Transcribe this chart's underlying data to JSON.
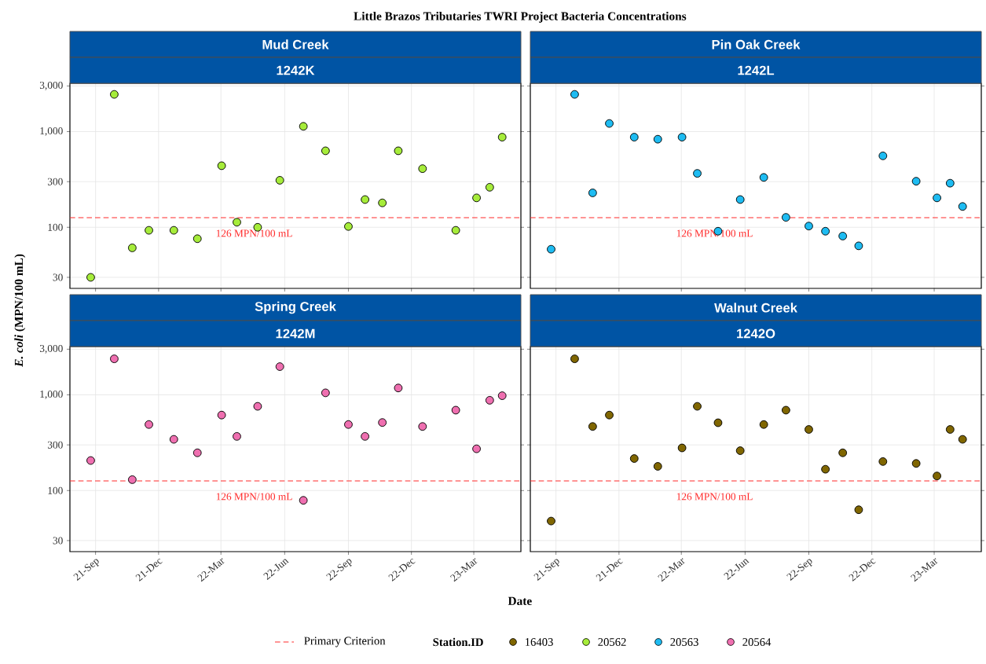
{
  "chart_data": [
    {
      "type": "scatter",
      "title": "Mud Creek",
      "subtitle": "1242K",
      "ylabel": "*E. coli* (MPN/100 mL)",
      "annotations": [
        "Little Brazos Tributaries TWRI Project Bacteria Concentrations"
      ],
      "x": [
        "2021-08-25",
        "2021-09-28",
        "2021-10-24",
        "2021-11-17",
        "2021-12-23",
        "2022-01-26",
        "2022-03-02",
        "2022-03-24",
        "2022-04-23",
        "2022-05-25",
        "2022-06-28",
        "2022-07-30",
        "2022-09-01",
        "2022-09-25",
        "2022-10-20",
        "2022-11-12",
        "2022-12-17",
        "2023-02-03",
        "2023-03-05",
        "2023-03-24",
        "2023-04-11"
      ],
      "series": [
        {
          "name": "20562",
          "color": "#a6ec3a",
          "values": [
            30,
            2450,
            61,
            93,
            93,
            76,
            440,
            113,
            100,
            310,
            1135,
            630,
            102,
            195,
            180,
            630,
            410,
            93,
            203,
            262,
            875
          ]
        }
      ],
      "xlim": [
        "2021-07-26",
        "2023-05-08"
      ],
      "xticks": [
        {
          "value": "2021-09-01",
          "label": null
        },
        {
          "value": "2021-12-01",
          "label": null
        },
        {
          "value": "2022-03-01",
          "label": null
        },
        {
          "value": "2022-06-01",
          "label": null
        },
        {
          "value": "2022-09-01",
          "label": null
        },
        {
          "value": "2022-12-01",
          "label": null
        },
        {
          "value": "2023-03-01",
          "label": null
        }
      ],
      "ylim": [
        23,
        3200
      ],
      "yticks": [
        30,
        100,
        300,
        {
          "value": 1000,
          "label": "1,000"
        },
        {
          "value": 3000,
          "label": "3,000"
        }
      ],
      "log": "y",
      "grid": true,
      "marker": "circle",
      "legend": "bottom",
      "tick_labels": "y",
      "ref_lines": [
        {
          "axis": "y",
          "value": 126,
          "label": "126 MPN/100 mL",
          "color": "#ff2a2a",
          "line_style": "dashed"
        }
      ]
    },
    {
      "type": "scatter",
      "title": "Pin Oak Creek",
      "subtitle": "1242L",
      "x": [
        "2021-08-25",
        "2021-09-28",
        "2021-10-24",
        "2021-11-17",
        "2021-12-23",
        "2022-01-26",
        "2022-03-02",
        "2022-03-24",
        "2022-04-23",
        "2022-05-25",
        "2022-06-28",
        "2022-07-30",
        "2022-09-01",
        "2022-09-25",
        "2022-10-20",
        "2022-11-12",
        "2022-12-17",
        "2023-02-03",
        "2023-03-05",
        "2023-03-24",
        "2023-04-11"
      ],
      "series": [
        {
          "name": "20563",
          "color": "#1ebcf2",
          "values": [
            59,
            2450,
            229,
            1217,
            875,
            833,
            875,
            366,
            91,
            195,
            332,
            127,
            103,
            91,
            81,
            64,
            558,
            303,
            203,
            289,
            165
          ]
        }
      ],
      "xlim": [
        "2021-07-26",
        "2023-05-08"
      ],
      "xticks": [
        {
          "value": "2021-09-01",
          "label": null
        },
        {
          "value": "2021-12-01",
          "label": null
        },
        {
          "value": "2022-03-01",
          "label": null
        },
        {
          "value": "2022-06-01",
          "label": null
        },
        {
          "value": "2022-09-01",
          "label": null
        },
        {
          "value": "2022-12-01",
          "label": null
        },
        {
          "value": "2023-03-01",
          "label": null
        }
      ],
      "ylim": [
        23,
        3200
      ],
      "yticks": [
        {
          "value": 30,
          "label": null
        },
        {
          "value": 100,
          "label": null
        },
        {
          "value": 300,
          "label": null
        },
        {
          "value": 1000,
          "label": null
        },
        {
          "value": 3000,
          "label": null
        }
      ],
      "log": "y",
      "grid": true,
      "marker": "circle",
      "legend": "bottom",
      "tick_labels": false,
      "ref_lines": [
        {
          "axis": "y",
          "value": 126,
          "label": "126 MPN/100 mL",
          "color": "#ff2a2a",
          "line_style": "dashed"
        }
      ]
    },
    {
      "type": "scatter",
      "title": "Spring Creek",
      "subtitle": "1242M",
      "xlabel": "Date",
      "x": [
        "2021-08-25",
        "2021-09-28",
        "2021-10-24",
        "2021-11-17",
        "2021-12-23",
        "2022-01-26",
        "2022-03-02",
        "2022-03-24",
        "2022-04-23",
        "2022-05-25",
        "2022-06-28",
        "2022-07-30",
        "2022-09-01",
        "2022-09-25",
        "2022-10-20",
        "2022-11-12",
        "2022-12-17",
        "2023-02-03",
        "2023-03-05",
        "2023-03-24",
        "2023-04-11"
      ],
      "series": [
        {
          "name": "20564",
          "color": "#ef6fb0",
          "values": [
            206,
            2380,
            130,
            490,
            343,
            248,
            615,
            368,
            759,
            1973,
            79,
            1050,
            490,
            368,
            514,
            1180,
            467,
            692,
            273,
            878,
            980
          ]
        }
      ],
      "xlim": [
        "2021-07-26",
        "2023-05-08"
      ],
      "xticks": [
        {
          "value": "2021-09-01",
          "label": "21-Sep"
        },
        {
          "value": "2021-12-01",
          "label": "21-Dec"
        },
        {
          "value": "2022-03-01",
          "label": "22-Mar"
        },
        {
          "value": "2022-06-01",
          "label": "22-Jun"
        },
        {
          "value": "2022-09-01",
          "label": "22-Sep"
        },
        {
          "value": "2022-12-01",
          "label": "22-Dec"
        },
        {
          "value": "2023-03-01",
          "label": "23-Mar"
        }
      ],
      "ylim": [
        23,
        3200
      ],
      "yticks": [
        30,
        100,
        300,
        {
          "value": 1000,
          "label": "1,000"
        },
        {
          "value": 3000,
          "label": "3,000"
        }
      ],
      "log": "y",
      "grid": true,
      "marker": "circle",
      "legend": "bottom",
      "ref_lines": [
        {
          "axis": "y",
          "value": 126,
          "label": "126 MPN/100 mL",
          "color": "#ff2a2a",
          "line_style": "dashed"
        }
      ]
    },
    {
      "type": "scatter",
      "title": "Walnut Creek",
      "subtitle": "1242O",
      "legend_title": "Station.ID",
      "annotations": [
        "Primary Criterion"
      ],
      "x": [
        "2021-08-25",
        "2021-09-28",
        "2021-10-24",
        "2021-11-17",
        "2021-12-23",
        "2022-01-26",
        "2022-03-02",
        "2022-03-24",
        "2022-04-23",
        "2022-05-25",
        "2022-06-28",
        "2022-07-30",
        "2022-09-01",
        "2022-09-25",
        "2022-10-20",
        "2022-11-12",
        "2022-12-17",
        "2023-02-03",
        "2023-03-05",
        "2023-03-24",
        "2023-04-11"
      ],
      "series": [
        {
          "name": "16403",
          "color": "#806600",
          "values": [
            48,
            2380,
            467,
            615,
            216,
            179,
            279,
            759,
            511,
            261,
            490,
            692,
            435,
            167,
            248,
            63,
            201,
            192,
            142,
            435,
            343
          ]
        }
      ],
      "xlim": [
        "2021-07-26",
        "2023-05-08"
      ],
      "xticks": [
        {
          "value": "2021-09-01",
          "label": "21-Sep"
        },
        {
          "value": "2021-12-01",
          "label": "21-Dec"
        },
        {
          "value": "2022-03-01",
          "label": "22-Mar"
        },
        {
          "value": "2022-06-01",
          "label": "22-Jun"
        },
        {
          "value": "2022-09-01",
          "label": "22-Sep"
        },
        {
          "value": "2022-12-01",
          "label": "22-Dec"
        },
        {
          "value": "2023-03-01",
          "label": "23-Mar"
        }
      ],
      "ylim": [
        23,
        3200
      ],
      "yticks": [
        {
          "value": 30,
          "label": null
        },
        {
          "value": 100,
          "label": null
        },
        {
          "value": 300,
          "label": null
        },
        {
          "value": 1000,
          "label": null
        },
        {
          "value": 3000,
          "label": null
        }
      ],
      "log": "y",
      "grid": true,
      "marker": "circle",
      "legend": "bottom",
      "tick_labels": "x",
      "ref_lines": [
        {
          "axis": "y",
          "value": 126,
          "label": "126 MPN/100 mL",
          "color": "#ff2a2a",
          "line_style": "dashed"
        }
      ]
    }
  ]
}
